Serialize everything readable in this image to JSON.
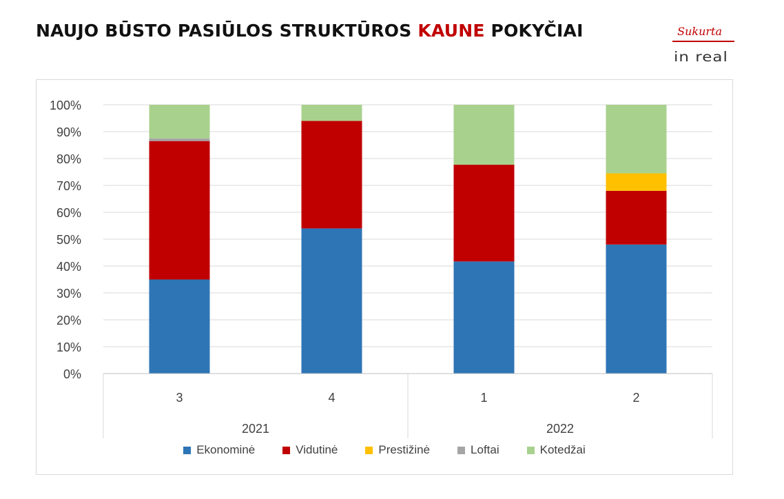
{
  "title": {
    "part1": "NAUJO BŪSTO PASIŪLOS STRUKTŪROS ",
    "highlight": "KAUNE",
    "part2": " POKYČIAI",
    "highlight_color": "#c00000"
  },
  "logo": {
    "tagline": "Sukurta",
    "brand": "in real"
  },
  "chart_data": {
    "type": "bar",
    "stacked": true,
    "percent": true,
    "categories": [
      "3",
      "4",
      "1",
      "2"
    ],
    "category_groups": [
      {
        "label": "2021",
        "categories": [
          "3",
          "4"
        ]
      },
      {
        "label": "2022",
        "categories": [
          "1",
          "2"
        ]
      }
    ],
    "series": [
      {
        "name": "Ekonominė",
        "color": "#2e75b6",
        "values": [
          35,
          54,
          41.7,
          48
        ]
      },
      {
        "name": "Vidutinė",
        "color": "#c00000",
        "values": [
          51.5,
          40,
          36,
          20
        ]
      },
      {
        "name": "Prestižinė",
        "color": "#ffc000",
        "values": [
          0,
          0,
          0,
          6.5
        ]
      },
      {
        "name": "Loftai",
        "color": "#a5a5a5",
        "values": [
          1,
          0,
          0,
          0
        ]
      },
      {
        "name": "Kotedžai",
        "color": "#a9d18e",
        "values": [
          12.5,
          6,
          22.3,
          25.5
        ]
      }
    ],
    "yticks": [
      "0%",
      "10%",
      "20%",
      "30%",
      "40%",
      "50%",
      "60%",
      "70%",
      "80%",
      "90%",
      "100%"
    ],
    "ylim": [
      0,
      100
    ],
    "grid": true,
    "legend_position": "bottom"
  }
}
